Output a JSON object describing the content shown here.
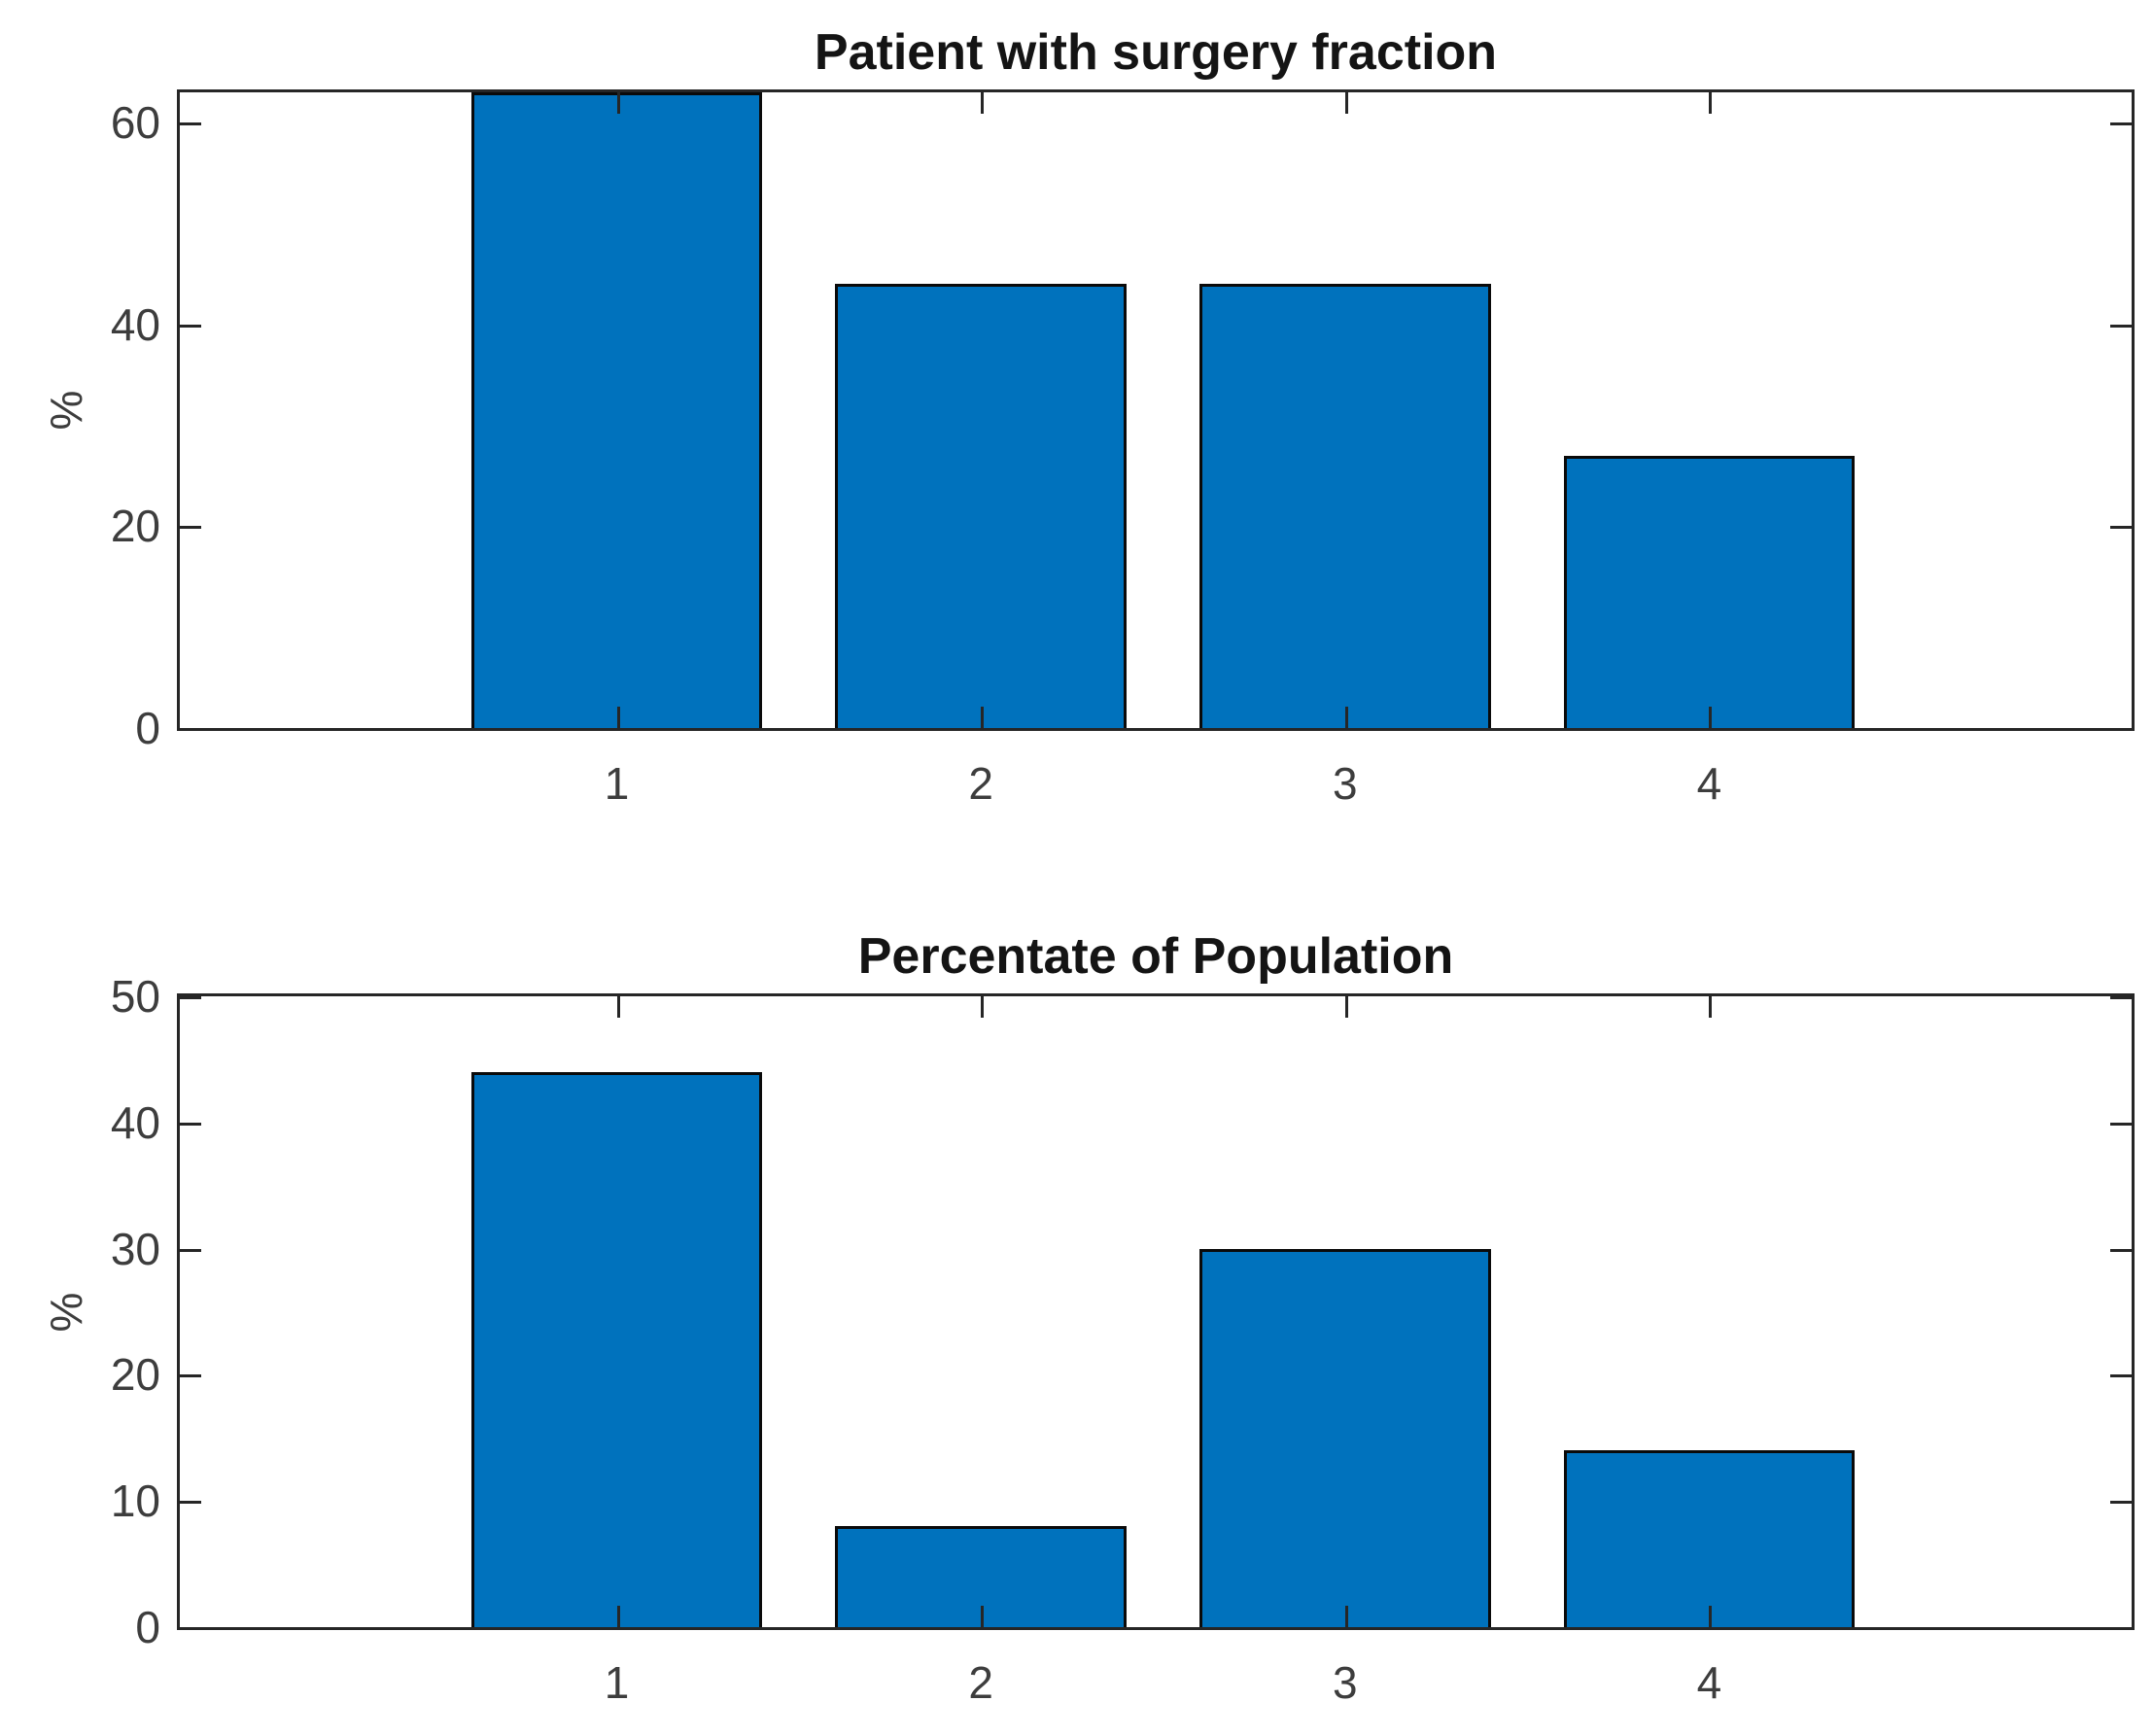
{
  "figure": {
    "background": "#ffffff",
    "bar_fill_color": "#0072BD",
    "bar_edge_color": "#0a0a0a",
    "axis_color": "#262626",
    "tick_label_color": "#3d3d3d",
    "title_color": "#141414"
  },
  "chart_data": [
    {
      "type": "bar",
      "title": "Patient with surgery fraction",
      "xlabel": "",
      "ylabel": "%",
      "categories": [
        "1",
        "2",
        "3",
        "4"
      ],
      "values": [
        63,
        44,
        44,
        27
      ],
      "yticks": [
        0,
        20,
        40,
        60
      ],
      "ylim": [
        0,
        63
      ],
      "xlim": [
        -0.2,
        5.16
      ],
      "bar_width": 0.8,
      "grid": false,
      "legend": null,
      "note": "bar for category 1 is clipped flush with the top of the axes box"
    },
    {
      "type": "bar",
      "title": "Percentate of Population",
      "xlabel": "",
      "ylabel": "%",
      "categories": [
        "1",
        "2",
        "3",
        "4"
      ],
      "values": [
        44,
        8,
        30,
        14
      ],
      "yticks": [
        0,
        10,
        20,
        30,
        40,
        50
      ],
      "ylim": [
        0,
        50
      ],
      "xlim": [
        -0.2,
        5.16
      ],
      "bar_width": 0.8,
      "grid": false,
      "legend": null
    }
  ]
}
